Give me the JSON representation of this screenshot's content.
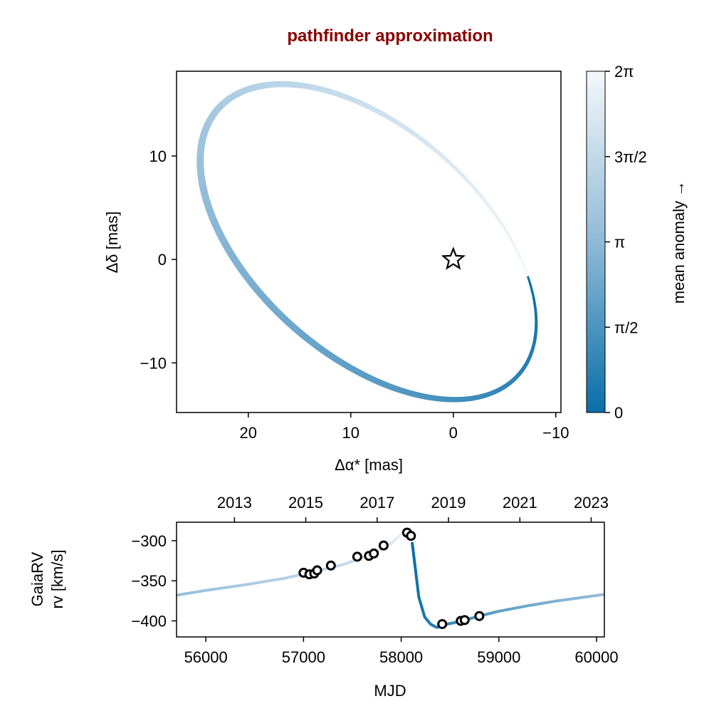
{
  "chart_data": [
    {
      "type": "line",
      "title": "pathfinder approximation",
      "title_color": "#8b0000",
      "xlabel": "Δα* [mas]",
      "ylabel": "Δδ [mas]",
      "x_reversed": true,
      "xlim": [
        27,
        -10.5
      ],
      "ylim": [
        -14.8,
        18.2
      ],
      "xticks": [
        {
          "v": 20,
          "label": "20"
        },
        {
          "v": 10,
          "label": "10"
        },
        {
          "v": 0,
          "label": "0"
        },
        {
          "v": -10,
          "label": "−10"
        }
      ],
      "yticks": [
        {
          "v": 10,
          "label": "10"
        },
        {
          "v": 0,
          "label": "0"
        },
        {
          "v": -10,
          "label": "−10"
        }
      ],
      "series": [
        {
          "orbit": {
            "mean_anomaly_range": [
              0,
              6.2832
            ],
            "center": [
              8.3,
              1.7
            ],
            "semi_major": 19.5,
            "semi_minor": 11.0,
            "major_axis_angle_deg": 41,
            "periastron_anomaly": 2.36
          }
        }
      ],
      "marker": {
        "shape": "star",
        "x": 0,
        "y": 0
      },
      "colorbar": {
        "label": "mean anomaly →",
        "range": [
          0,
          6.2832
        ],
        "ticks": [
          {
            "v": 0,
            "label": "0"
          },
          {
            "v": 1.5708,
            "label": "π/2"
          },
          {
            "v": 3.1416,
            "label": "π"
          },
          {
            "v": 4.7124,
            "label": "3π/2"
          },
          {
            "v": 6.2832,
            "label": "2π"
          }
        ],
        "color_low": "#0a6ea8",
        "color_mid": "#8fbad7",
        "color_high": "#f4f8fb"
      }
    },
    {
      "type": "line",
      "xlabel": "MJD",
      "ylabel": "GaiaRV\nrv [km/s]",
      "xlim": [
        55700,
        60080
      ],
      "ylim": [
        -420,
        -277
      ],
      "xticks": [
        {
          "v": 56000,
          "label": "56000"
        },
        {
          "v": 57000,
          "label": "57000"
        },
        {
          "v": 58000,
          "label": "58000"
        },
        {
          "v": 59000,
          "label": "59000"
        },
        {
          "v": 60000,
          "label": "60000"
        }
      ],
      "yticks": [
        {
          "v": -300,
          "label": "−300"
        },
        {
          "v": -350,
          "label": "−350"
        },
        {
          "v": -400,
          "label": "−400"
        }
      ],
      "top_axis_ticks": [
        {
          "v": 56293,
          "label": "2013"
        },
        {
          "v": 57023,
          "label": "2015"
        },
        {
          "v": 57754,
          "label": "2017"
        },
        {
          "v": 58484,
          "label": "2019"
        },
        {
          "v": 59215,
          "label": "2021"
        },
        {
          "v": 59945,
          "label": "2023"
        }
      ],
      "model_curve": {
        "x": [
          55700,
          56000,
          56400,
          56800,
          57100,
          57400,
          57700,
          57900,
          58000,
          58060,
          58100,
          58140,
          58180,
          58240,
          58300,
          58360,
          58410,
          58470,
          58550,
          58650,
          58800,
          59000,
          59300,
          59600,
          59900,
          60080
        ],
        "y": [
          -368,
          -362,
          -355,
          -347,
          -339,
          -330,
          -317,
          -303,
          -292,
          -287,
          -290,
          -330,
          -370,
          -395,
          -404,
          -408,
          -407,
          -404,
          -402,
          -399,
          -394,
          -388,
          -381,
          -375,
          -370,
          -367
        ],
        "phase": [
          3.3,
          3.6,
          3.95,
          4.3,
          4.55,
          4.8,
          5.1,
          5.45,
          5.75,
          6.0,
          6.2,
          0.12,
          0.28,
          0.45,
          0.6,
          0.75,
          0.88,
          1.02,
          1.2,
          1.4,
          1.7,
          2.0,
          2.4,
          2.8,
          3.1,
          3.3
        ]
      },
      "observations": {
        "x": [
          57000,
          57060,
          57110,
          57140,
          57280,
          57550,
          57670,
          57720,
          57820,
          58060,
          58100,
          58420,
          58610,
          58650,
          58800
        ],
        "y": [
          -340,
          -342,
          -341,
          -337,
          -331,
          -320,
          -319,
          -316,
          -306,
          -290,
          -294,
          -404,
          -400,
          -399,
          -394
        ]
      }
    }
  ]
}
